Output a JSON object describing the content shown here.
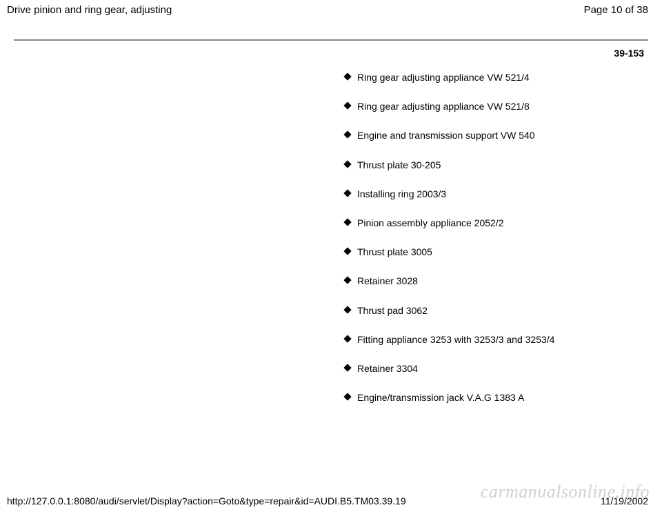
{
  "header": {
    "title": "Drive pinion and ring gear, adjusting",
    "page_indicator": "Page 10 of 38"
  },
  "section_number": "39-153",
  "items": [
    "Ring gear adjusting appliance VW 521/4",
    "Ring gear adjusting appliance VW 521/8",
    "Engine and transmission support VW 540",
    "Thrust plate 30-205",
    "Installing ring 2003/3",
    "Pinion assembly appliance 2052/2",
    "Thrust plate 3005",
    "Retainer 3028",
    "Thrust pad 3062",
    "Fitting appliance 3253 with 3253/3 and 3253/4",
    "Retainer 3304",
    "Engine/transmission jack V.A.G 1383 A"
  ],
  "footer": {
    "url": "http://127.0.0.1:8080/audi/servlet/Display?action=Goto&type=repair&id=AUDI.B5.TM03.39.19",
    "date": "11/19/2002"
  },
  "watermark": "carmanualsonline.info",
  "colors": {
    "text": "#000000",
    "rule": "#888888",
    "watermark": "#d0d0d0",
    "background": "#ffffff"
  },
  "typography": {
    "body_fontsize": 14,
    "header_fontsize": 15,
    "watermark_fontsize": 26
  }
}
